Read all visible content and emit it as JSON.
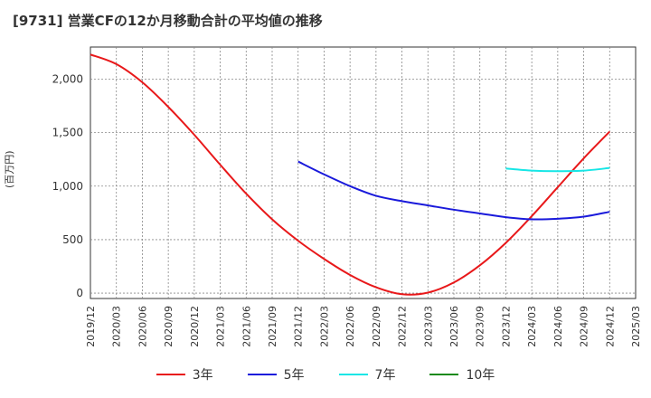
{
  "title": "[9731]  営業CFの12か月移動合計の平均値の推移",
  "chart_data": {
    "type": "line",
    "title": "[9731]  営業CFの12か月移動合計の平均値の推移",
    "ylabel": "(百万円)",
    "xlabel": "",
    "ylim": [
      -50,
      2300
    ],
    "x_ticks": [
      "2019/12",
      "2020/03",
      "2020/06",
      "2020/09",
      "2020/12",
      "2021/03",
      "2021/06",
      "2021/09",
      "2021/12",
      "2022/03",
      "2022/06",
      "2022/09",
      "2022/12",
      "2023/03",
      "2023/06",
      "2023/09",
      "2023/12",
      "2024/03",
      "2024/06",
      "2024/09",
      "2024/12",
      "2025/03"
    ],
    "y_ticks": [
      0,
      500,
      1000,
      1500,
      2000
    ],
    "y_tick_labels": [
      "0",
      "500",
      "1,000",
      "1,500",
      "2,000"
    ],
    "grid": true,
    "legend_position": "bottom",
    "series": [
      {
        "name": "3年",
        "color": "#e8181a",
        "x": [
          "2019/12",
          "2020/03",
          "2020/06",
          "2020/09",
          "2020/12",
          "2021/03",
          "2021/06",
          "2021/09",
          "2021/12",
          "2022/03",
          "2022/06",
          "2022/09",
          "2022/12",
          "2023/03",
          "2023/06",
          "2023/09",
          "2023/12",
          "2024/03",
          "2024/06",
          "2024/09",
          "2024/12"
        ],
        "values": [
          2230,
          2140,
          1970,
          1740,
          1480,
          1200,
          930,
          690,
          490,
          320,
          170,
          55,
          -10,
          5,
          100,
          260,
          470,
          720,
          990,
          1260,
          1510
        ]
      },
      {
        "name": "5年",
        "color": "#1a1adb",
        "x": [
          "2021/12",
          "2022/03",
          "2022/06",
          "2022/09",
          "2022/12",
          "2023/03",
          "2023/06",
          "2023/09",
          "2023/12",
          "2024/03",
          "2024/06",
          "2024/09",
          "2024/12"
        ],
        "values": [
          1230,
          1110,
          1000,
          910,
          860,
          820,
          780,
          745,
          710,
          690,
          695,
          715,
          760
        ]
      },
      {
        "name": "7年",
        "color": "#17e6e6",
        "x": [
          "2023/12",
          "2024/03",
          "2024/06",
          "2024/09",
          "2024/12"
        ],
        "values": [
          1165,
          1145,
          1140,
          1145,
          1170
        ]
      },
      {
        "name": "10年",
        "color": "#1a8a1a",
        "x": [],
        "values": []
      }
    ]
  }
}
